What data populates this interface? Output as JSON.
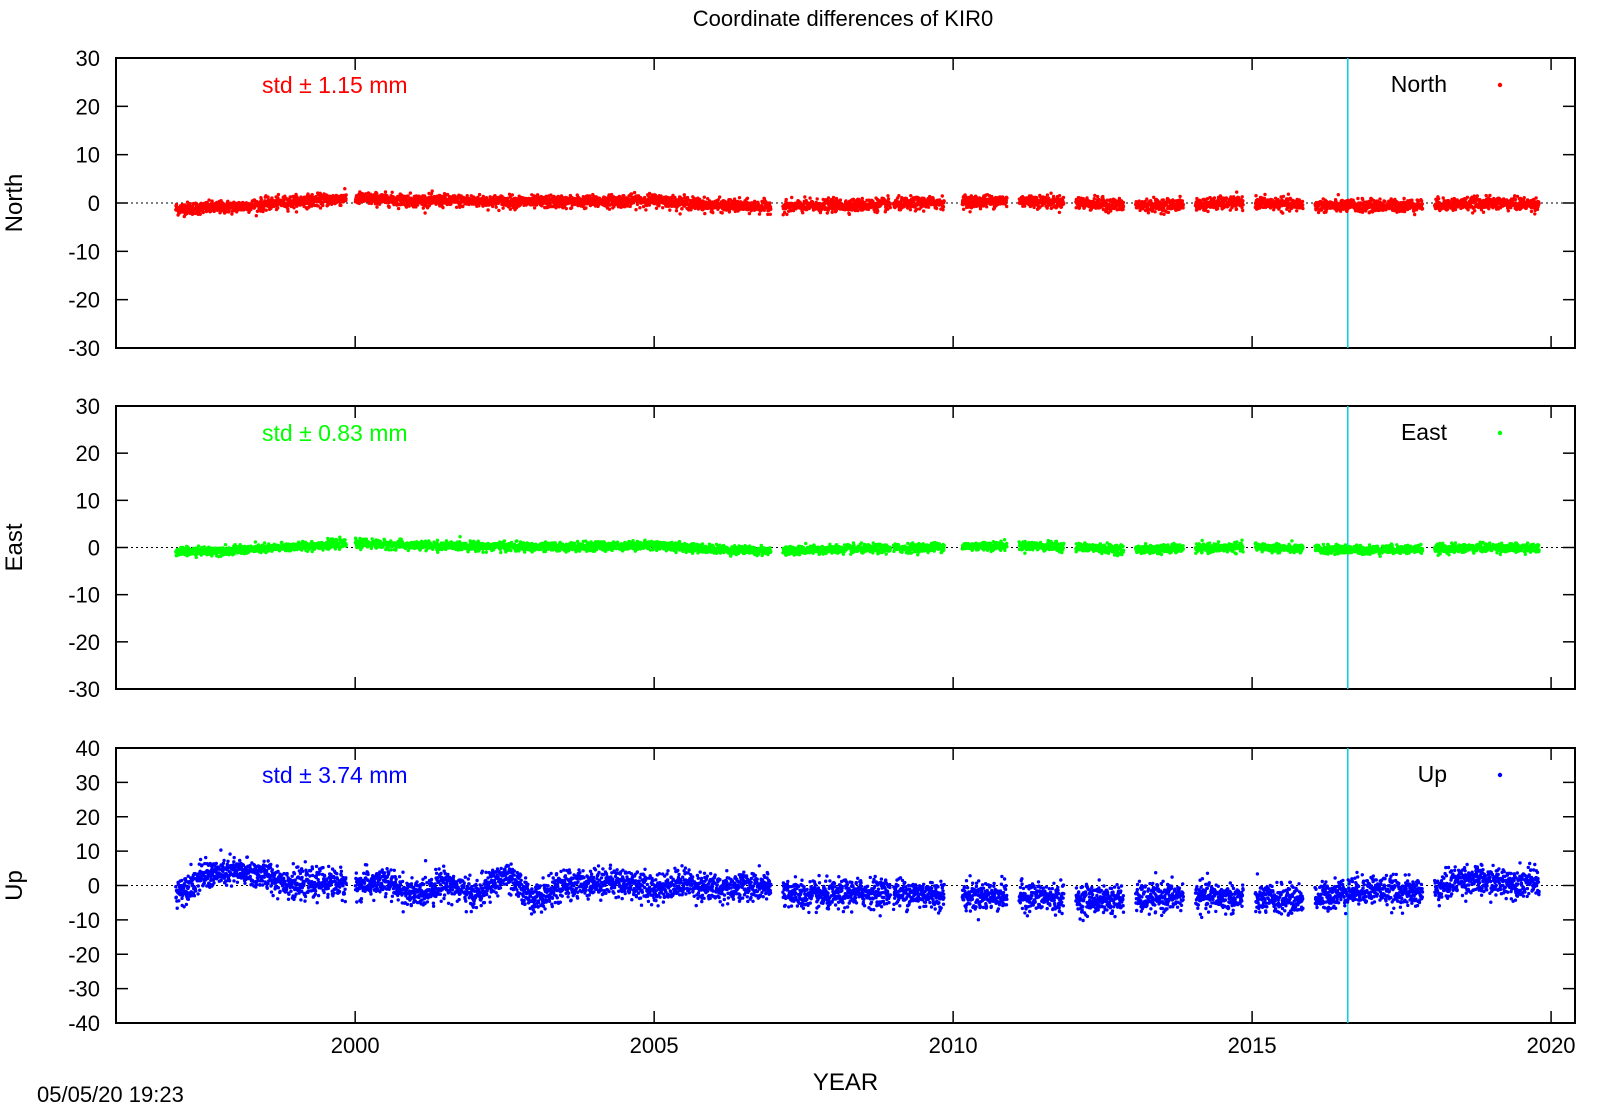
{
  "title": "Coordinate differences of KIR0",
  "timestamp": "05/05/20 19:23",
  "chart_data": [
    {
      "type": "scatter",
      "name": "North",
      "ylabel": "North",
      "legend_label": "North",
      "legend_position": "top-right",
      "std_label": "std ± 1.15 mm",
      "color": "#ff0000",
      "ylim": [
        -30,
        30
      ],
      "yticks": [
        30,
        20,
        10,
        0,
        -10,
        -20,
        -30
      ],
      "std_mm": 1.15,
      "mean_mm": 0,
      "zero_line": "dotted",
      "x_range": [
        1997.0,
        2019.8
      ],
      "gaps": [
        [
          1999.85,
          2000.0
        ],
        [
          2006.95,
          2007.15
        ],
        [
          2008.95,
          2009.0
        ],
        [
          2009.85,
          2010.15
        ],
        [
          2010.9,
          2011.1
        ],
        [
          2011.85,
          2012.05
        ],
        [
          2012.85,
          2013.05
        ],
        [
          2013.85,
          2014.05
        ],
        [
          2014.85,
          2015.05
        ],
        [
          2015.85,
          2016.05
        ],
        [
          2017.85,
          2018.05
        ]
      ],
      "seasonal": [
        [
          1997,
          -1.2
        ],
        [
          1998,
          -0.8
        ],
        [
          1999,
          0.3
        ],
        [
          2000,
          1.0
        ],
        [
          2001,
          0.5
        ],
        [
          2002,
          0.4
        ],
        [
          2003,
          0.2
        ],
        [
          2004,
          0.3
        ],
        [
          2005,
          0.6
        ],
        [
          2006,
          -0.5
        ],
        [
          2007,
          -0.8
        ],
        [
          2008,
          -0.5
        ],
        [
          2009,
          -0.3
        ],
        [
          2010,
          0.2
        ],
        [
          2011,
          0.5
        ],
        [
          2012,
          0.1
        ],
        [
          2013,
          -0.6
        ],
        [
          2014,
          -0.3
        ],
        [
          2015,
          0.1
        ],
        [
          2016,
          -0.5
        ],
        [
          2017,
          -0.6
        ],
        [
          2018,
          -0.4
        ],
        [
          2019,
          0.0
        ],
        [
          2019.8,
          -0.3
        ]
      ]
    },
    {
      "type": "scatter",
      "name": "East",
      "ylabel": "East",
      "legend_label": "East",
      "legend_position": "top-right",
      "std_label": "std ± 0.83 mm",
      "color": "#00ff00",
      "ylim": [
        -30,
        30
      ],
      "yticks": [
        30,
        20,
        10,
        0,
        -10,
        -20,
        -30
      ],
      "std_mm": 0.83,
      "mean_mm": 0,
      "zero_line": "dotted",
      "x_range": [
        1997.0,
        2019.8
      ],
      "gaps": [
        [
          1999.85,
          2000.0
        ],
        [
          2006.95,
          2007.15
        ],
        [
          2008.95,
          2009.0
        ],
        [
          2009.85,
          2010.15
        ],
        [
          2010.9,
          2011.1
        ],
        [
          2011.85,
          2012.05
        ],
        [
          2012.85,
          2013.05
        ],
        [
          2013.85,
          2014.05
        ],
        [
          2014.85,
          2015.05
        ],
        [
          2015.85,
          2016.05
        ],
        [
          2017.85,
          2018.05
        ]
      ],
      "seasonal": [
        [
          1997,
          -0.9
        ],
        [
          1998,
          -0.6
        ],
        [
          1999,
          0.2
        ],
        [
          2000,
          0.9
        ],
        [
          2001,
          0.4
        ],
        [
          2002,
          0.3
        ],
        [
          2003,
          0.1
        ],
        [
          2004,
          0.2
        ],
        [
          2005,
          0.5
        ],
        [
          2006,
          -0.4
        ],
        [
          2007,
          -0.7
        ],
        [
          2008,
          -0.4
        ],
        [
          2009,
          -0.2
        ],
        [
          2010,
          0.2
        ],
        [
          2011,
          0.4
        ],
        [
          2012,
          0.1
        ],
        [
          2013,
          -0.5
        ],
        [
          2014,
          -0.2
        ],
        [
          2015,
          0.1
        ],
        [
          2016,
          -0.4
        ],
        [
          2017,
          -0.5
        ],
        [
          2018,
          -0.3
        ],
        [
          2019,
          0.0
        ],
        [
          2019.8,
          -0.2
        ]
      ]
    },
    {
      "type": "scatter",
      "name": "Up",
      "ylabel": "Up",
      "legend_label": "Up",
      "legend_position": "top-right",
      "std_label": "std ± 3.74 mm",
      "color": "#0000ff",
      "ylim": [
        -40,
        40
      ],
      "yticks": [
        40,
        30,
        20,
        10,
        0,
        -10,
        -20,
        -30,
        -40
      ],
      "std_mm": 3.74,
      "mean_mm": 0,
      "zero_line": "dotted",
      "x_range": [
        1997.0,
        2019.8
      ],
      "gaps": [
        [
          1999.85,
          2000.0
        ],
        [
          2006.95,
          2007.15
        ],
        [
          2008.95,
          2009.0
        ],
        [
          2009.85,
          2010.15
        ],
        [
          2010.9,
          2011.1
        ],
        [
          2011.85,
          2012.05
        ],
        [
          2012.85,
          2013.05
        ],
        [
          2013.85,
          2014.05
        ],
        [
          2014.85,
          2015.05
        ],
        [
          2015.85,
          2016.05
        ],
        [
          2017.85,
          2018.05
        ]
      ],
      "seasonal": [
        [
          1997,
          -2.0
        ],
        [
          1997.5,
          3.0
        ],
        [
          1998,
          4.0
        ],
        [
          1998.5,
          3.0
        ],
        [
          1999,
          0.0
        ],
        [
          1999.5,
          1.0
        ],
        [
          2000,
          0.0
        ],
        [
          2000.5,
          1.0
        ],
        [
          2001,
          -3.0
        ],
        [
          2001.5,
          1.0
        ],
        [
          2002,
          -3.0
        ],
        [
          2002.5,
          3.0
        ],
        [
          2003,
          -4.0
        ],
        [
          2003.5,
          0.0
        ],
        [
          2004,
          1.0
        ],
        [
          2004.5,
          1.0
        ],
        [
          2005,
          -1.0
        ],
        [
          2005.5,
          1.0
        ],
        [
          2006,
          -1.0
        ],
        [
          2006.5,
          0.0
        ],
        [
          2007,
          -1.0
        ],
        [
          2007.5,
          -3.0
        ],
        [
          2008,
          -3.0
        ],
        [
          2008.5,
          -2.0
        ],
        [
          2009,
          -2.0
        ],
        [
          2010,
          -3.0
        ],
        [
          2011,
          -3.0
        ],
        [
          2012,
          -4.0
        ],
        [
          2013,
          -4.0
        ],
        [
          2014,
          -3.0
        ],
        [
          2015,
          -4.0
        ],
        [
          2016,
          -4.0
        ],
        [
          2016.5,
          -2.0
        ],
        [
          2017,
          -1.0
        ],
        [
          2017.5,
          -2.0
        ],
        [
          2018,
          -2.0
        ],
        [
          2018.5,
          2.0
        ],
        [
          2019,
          1.0
        ],
        [
          2019.8,
          1.0
        ]
      ]
    }
  ],
  "x_axis": {
    "label": "YEAR",
    "xlim": [
      1996.0,
      2020.4
    ],
    "ticks": [
      "2000",
      "2005",
      "2010",
      "2015",
      "2020"
    ]
  },
  "marker": {
    "x": 2016.6,
    "color": "#00d0e8"
  }
}
